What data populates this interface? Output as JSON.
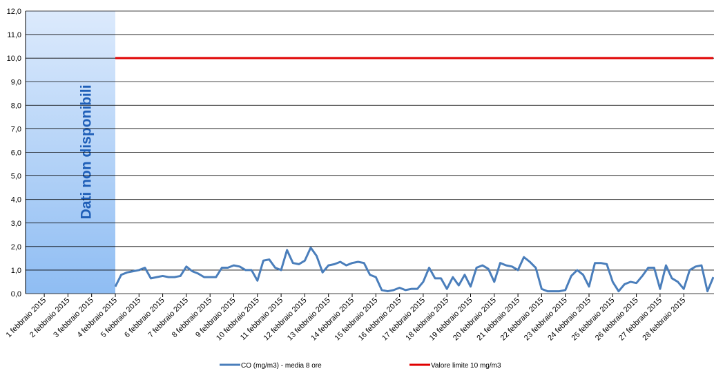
{
  "chart_data": {
    "type": "line",
    "annotation": "Dati non disponibili",
    "categories": [
      "1 febbraio 2015",
      null,
      null,
      null,
      "2 febbraio 2015",
      null,
      null,
      null,
      "3 febbraio 2015",
      null,
      null,
      null,
      "4 febbraio 2015",
      null,
      null,
      null,
      "5 febbraio 2015",
      null,
      null,
      null,
      "6 febbraio 2015",
      null,
      null,
      null,
      "7 febbraio 2015",
      null,
      null,
      null,
      "8 febbraio 2015",
      null,
      null,
      null,
      "9 febbraio 2015",
      null,
      null,
      null,
      "10 febbraio 2015",
      null,
      null,
      null,
      "11 febbraio 2015",
      null,
      null,
      null,
      "12 febbraio 2015",
      null,
      null,
      null,
      "13 febbraio 2015",
      null,
      null,
      null,
      "14 febbraio 2015",
      null,
      null,
      null,
      "15 febbraio 2015",
      null,
      null,
      null,
      "16 febbraio 2015",
      null,
      null,
      null,
      "17 febbraio 2015",
      null,
      null,
      null,
      "18 febbraio 2015",
      null,
      null,
      null,
      "19 febbraio 2015",
      null,
      null,
      null,
      "20 febbraio 2015",
      null,
      null,
      null,
      "21 febbraio 2015",
      null,
      null,
      null,
      "22 febbraio 2015",
      null,
      null,
      null,
      "23 febbraio 2015",
      null,
      null,
      null,
      "24 febbraio 2015",
      null,
      null,
      null,
      "25 febbraio 2015",
      null,
      null,
      null,
      "26 febbraio 2015",
      null,
      null,
      null,
      "27 febbraio 2015",
      null,
      null,
      null,
      "28 febbraio 2015",
      null,
      null,
      null,
      null,
      null
    ],
    "series": [
      {
        "name": "CO (mg/m3) - media 8 ore",
        "color": "#4a7ebb",
        "values": [
          null,
          null,
          null,
          null,
          null,
          null,
          null,
          null,
          null,
          null,
          null,
          null,
          0.3,
          0.8,
          0.9,
          0.95,
          1.0,
          1.1,
          0.65,
          0.7,
          0.75,
          0.7,
          0.7,
          0.75,
          1.15,
          0.95,
          0.85,
          0.7,
          0.7,
          0.7,
          1.1,
          1.1,
          1.2,
          1.15,
          1.0,
          1.0,
          0.55,
          1.4,
          1.45,
          1.1,
          1.0,
          1.85,
          1.3,
          1.25,
          1.4,
          1.95,
          1.6,
          0.9,
          1.2,
          1.25,
          1.35,
          1.2,
          1.3,
          1.35,
          1.3,
          0.8,
          0.7,
          0.15,
          0.1,
          0.15,
          0.25,
          0.15,
          0.2,
          0.2,
          0.5,
          1.1,
          0.65,
          0.65,
          0.2,
          0.7,
          0.35,
          0.8,
          0.3,
          1.1,
          1.2,
          1.05,
          0.5,
          1.3,
          1.2,
          1.15,
          1.0,
          1.55,
          1.35,
          1.1,
          0.2,
          0.1,
          0.1,
          0.1,
          0.15,
          0.75,
          1.0,
          0.8,
          0.3,
          1.3,
          1.3,
          1.25,
          0.5,
          0.1,
          0.4,
          0.5,
          0.45,
          0.75,
          1.1,
          1.1,
          0.2,
          1.2,
          0.65,
          0.5,
          0.2,
          1.0,
          1.15,
          1.2,
          0.1,
          0.7
        ]
      },
      {
        "name": "Valore limite 10 mg/m3",
        "color": "#e00000",
        "values": [
          null,
          null,
          null,
          null,
          null,
          null,
          null,
          null,
          null,
          null,
          null,
          null,
          10,
          10,
          10,
          10,
          10,
          10,
          10,
          10,
          10,
          10,
          10,
          10,
          10,
          10,
          10,
          10,
          10,
          10,
          10,
          10,
          10,
          10,
          10,
          10,
          10,
          10,
          10,
          10,
          10,
          10,
          10,
          10,
          10,
          10,
          10,
          10,
          10,
          10,
          10,
          10,
          10,
          10,
          10,
          10,
          10,
          10,
          10,
          10,
          10,
          10,
          10,
          10,
          10,
          10,
          10,
          10,
          10,
          10,
          10,
          10,
          10,
          10,
          10,
          10,
          10,
          10,
          10,
          10,
          10,
          10,
          10,
          10,
          10,
          10,
          10,
          10,
          10,
          10,
          10,
          10,
          10,
          10,
          10,
          10,
          10,
          10,
          10,
          10,
          10,
          10,
          10,
          10,
          10,
          10,
          10,
          10,
          10,
          10,
          10,
          10,
          10,
          10
        ]
      }
    ],
    "ylim": [
      0,
      12
    ],
    "yticks": [
      {
        "value": 0,
        "label": "0,0"
      },
      {
        "value": 1,
        "label": "1,0"
      },
      {
        "value": 2,
        "label": "2,0"
      },
      {
        "value": 3,
        "label": "3,0"
      },
      {
        "value": 4,
        "label": "4,0"
      },
      {
        "value": 5,
        "label": "5,0"
      },
      {
        "value": 6,
        "label": "6,0"
      },
      {
        "value": 7,
        "label": "7,0"
      },
      {
        "value": 8,
        "label": "8,0"
      },
      {
        "value": 9,
        "label": "9,0"
      },
      {
        "value": 10,
        "label": "10,0"
      },
      {
        "value": 11,
        "label": "11,0"
      },
      {
        "value": 12,
        "label": "12,0"
      }
    ],
    "grid": true
  }
}
